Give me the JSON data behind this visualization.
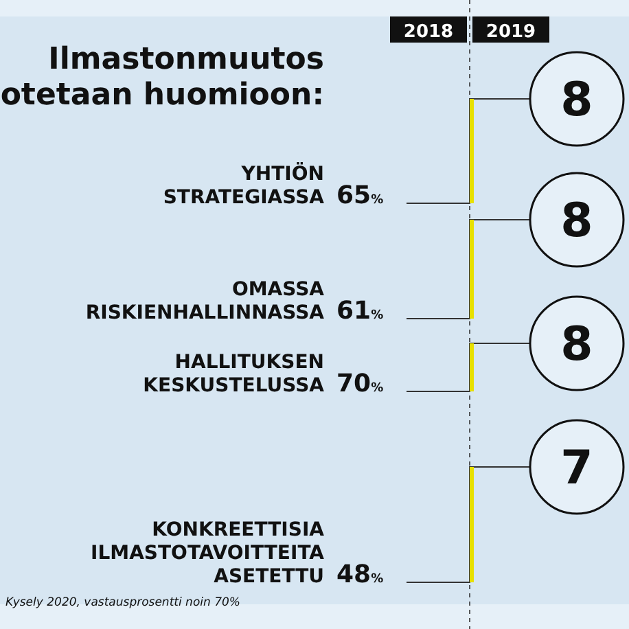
{
  "chart_data": {
    "type": "other",
    "title": "Ilmastonmuutos\notetaan huomioon:",
    "categories": [
      "YHTIÖN\nSTRATEGIASSA",
      "OMASSA\nRISKIENHALLINNASSA",
      "HALLITUKSEN\nKESKUSTELUSSA",
      "KONKREETTISIA\nILMASTOTAVOITTEITA\nASETETTU"
    ],
    "series": [
      {
        "name": "2018",
        "values": [
          65,
          61,
          70,
          48
        ],
        "value_labels": [
          "65%",
          "61%",
          "70%",
          "48%"
        ]
      },
      {
        "name": "2019",
        "values": [
          null,
          null,
          null,
          null
        ],
        "value_labels": [
          "8",
          "8",
          "8",
          "7"
        ]
      }
    ],
    "annotations": [
      "Kysely 2020, vastausprosentti noin 70%"
    ]
  }
}
